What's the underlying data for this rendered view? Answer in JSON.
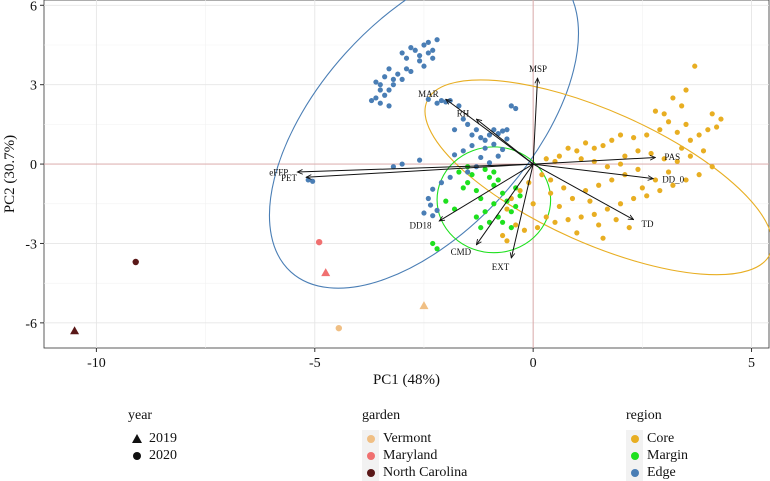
{
  "chart_data": {
    "type": "scatter",
    "xlabel": "PC1 (48%)",
    "ylabel": "PC2 (30.7%)",
    "xlim": [
      -11.2,
      5.4
    ],
    "ylim": [
      -6.95,
      6.2
    ],
    "x_ticks": [
      -10,
      -5,
      0,
      5
    ],
    "y_ticks": [
      -6,
      -3,
      0,
      3,
      6
    ],
    "grid": true,
    "reference_lines": {
      "x": 0,
      "y": 0,
      "color": "#d9a3a3"
    },
    "colors": {
      "Core": "#e8ae22",
      "Margin": "#1ee01e",
      "Edge": "#4a7eb5",
      "Vermont": "#f0bf84",
      "Maryland": "#f07070",
      "North Carolina": "#5a1818"
    },
    "ellipses": [
      {
        "region": "Edge",
        "cx": -2.5,
        "cy": 1.5,
        "rx": 4.55,
        "ry": 4.0,
        "angle_deg": -48
      },
      {
        "region": "Core",
        "cx": 1.5,
        "cy": -0.5,
        "rx": 4.3,
        "ry": 2.5,
        "angle_deg": 24
      },
      {
        "region": "Margin",
        "cx": -0.9,
        "cy": -1.35,
        "rx": 1.3,
        "ry": 2.0,
        "angle_deg": 0
      }
    ],
    "vectors": [
      {
        "label": "MSP",
        "x": 0.1,
        "y": 3.25
      },
      {
        "label": "MAR",
        "x": -2.0,
        "y": 2.45
      },
      {
        "label": "RH",
        "x": -1.3,
        "y": 1.7
      },
      {
        "label": "PAS",
        "x": 2.8,
        "y": 0.25
      },
      {
        "label": "DD_0",
        "x": 2.75,
        "y": -0.55
      },
      {
        "label": "TD",
        "x": 2.3,
        "y": -2.1
      },
      {
        "label": "eFFP",
        "x": -5.4,
        "y": -0.3
      },
      {
        "label": "PET",
        "x": -5.2,
        "y": -0.5
      },
      {
        "label": "DD18",
        "x": -2.15,
        "y": -2.15
      },
      {
        "label": "CMD",
        "x": -1.3,
        "y": -3.05
      },
      {
        "label": "EXT",
        "x": -0.5,
        "y": -3.55
      }
    ],
    "garden_points": [
      {
        "garden": "North Carolina",
        "year": "2019",
        "x": -10.5,
        "y": -6.3
      },
      {
        "garden": "North Carolina",
        "year": "2020",
        "x": -9.1,
        "y": -3.7
      },
      {
        "garden": "Maryland",
        "year": "2020",
        "x": -4.9,
        "y": -2.95
      },
      {
        "garden": "Maryland",
        "year": "2019",
        "x": -4.75,
        "y": -4.1
      },
      {
        "garden": "Vermont",
        "year": "2019",
        "x": -2.5,
        "y": -5.35
      },
      {
        "garden": "Vermont",
        "year": "2020",
        "x": -4.45,
        "y": -6.2
      }
    ],
    "series": [
      {
        "name": "Edge",
        "points": [
          [
            -3.0,
            4.2
          ],
          [
            -2.9,
            4.0
          ],
          [
            -2.8,
            4.4
          ],
          [
            -2.7,
            4.3
          ],
          [
            -2.6,
            4.1
          ],
          [
            -2.5,
            4.5
          ],
          [
            -2.4,
            4.2
          ],
          [
            -2.3,
            4.0
          ],
          [
            -2.6,
            3.9
          ],
          [
            -2.9,
            3.6
          ],
          [
            -3.1,
            3.4
          ],
          [
            -3.0,
            3.2
          ],
          [
            -2.8,
            3.5
          ],
          [
            -2.5,
            3.7
          ],
          [
            -2.3,
            4.3
          ],
          [
            -2.2,
            4.7
          ],
          [
            -2.4,
            4.6
          ],
          [
            -3.2,
            3.0
          ],
          [
            -3.3,
            2.8
          ],
          [
            -3.4,
            2.6
          ],
          [
            -3.5,
            2.8
          ],
          [
            -3.6,
            2.5
          ],
          [
            -3.7,
            2.4
          ],
          [
            -3.5,
            2.3
          ],
          [
            -3.3,
            2.2
          ],
          [
            -3.6,
            3.1
          ],
          [
            -3.4,
            3.3
          ],
          [
            -3.3,
            3.6
          ],
          [
            -3.2,
            3.2
          ],
          [
            -3.5,
            3.0
          ],
          [
            -2.2,
            2.3
          ],
          [
            -2.1,
            2.4
          ],
          [
            -2.0,
            2.35
          ],
          [
            -1.9,
            2.4
          ],
          [
            -2.4,
            2.45
          ],
          [
            -1.7,
            2.2
          ],
          [
            -1.6,
            1.7
          ],
          [
            -1.5,
            1.5
          ],
          [
            -1.3,
            1.3
          ],
          [
            -1.2,
            1.0
          ],
          [
            -1.1,
            0.9
          ],
          [
            -1.0,
            1.1
          ],
          [
            -0.9,
            1.3
          ],
          [
            -0.8,
            1.15
          ],
          [
            -0.7,
            1.25
          ],
          [
            -0.6,
            0.95
          ],
          [
            -1.4,
            0.7
          ],
          [
            -1.6,
            0.5
          ],
          [
            -1.2,
            0.25
          ],
          [
            -1.0,
            0.05
          ],
          [
            -0.5,
            2.2
          ],
          [
            -0.4,
            2.1
          ],
          [
            -1.3,
            -0.1
          ],
          [
            -1.5,
            -0.3
          ],
          [
            -1.9,
            -0.5
          ],
          [
            -2.1,
            -0.7
          ],
          [
            -2.3,
            -0.95
          ],
          [
            -2.4,
            -1.3
          ],
          [
            -2.35,
            -1.55
          ],
          [
            -2.2,
            -1.75
          ],
          [
            -2.5,
            -1.85
          ],
          [
            -2.3,
            -1.95
          ],
          [
            -3.2,
            -0.1
          ],
          [
            -3.0,
            0.0
          ],
          [
            -2.6,
            0.15
          ],
          [
            -1.8,
            0.35
          ],
          [
            -0.8,
            0.3
          ],
          [
            -0.7,
            0.55
          ],
          [
            -5.15,
            -0.6
          ],
          [
            -5.05,
            -0.65
          ],
          [
            -0.9,
            0.75
          ],
          [
            -1.1,
            0.6
          ],
          [
            -1.4,
            1.1
          ],
          [
            -1.8,
            1.3
          ],
          [
            -0.6,
            1.3
          ]
        ]
      },
      {
        "name": "Core",
        "points": [
          [
            3.7,
            3.7
          ],
          [
            3.5,
            2.8
          ],
          [
            3.2,
            2.5
          ],
          [
            3.4,
            2.2
          ],
          [
            3.0,
            1.9
          ],
          [
            2.8,
            2.0
          ],
          [
            3.1,
            1.6
          ],
          [
            3.5,
            1.5
          ],
          [
            4.1,
            1.9
          ],
          [
            4.3,
            1.7
          ],
          [
            4.2,
            1.4
          ],
          [
            4.0,
            1.3
          ],
          [
            3.8,
            1.1
          ],
          [
            3.6,
            0.9
          ],
          [
            3.3,
            1.2
          ],
          [
            2.9,
            1.3
          ],
          [
            2.6,
            1.1
          ],
          [
            2.3,
            1.0
          ],
          [
            2.0,
            1.1
          ],
          [
            1.8,
            0.9
          ],
          [
            1.6,
            0.7
          ],
          [
            1.4,
            0.6
          ],
          [
            1.2,
            0.8
          ],
          [
            1.0,
            0.5
          ],
          [
            0.8,
            0.6
          ],
          [
            0.6,
            0.3
          ],
          [
            0.5,
            0.1
          ],
          [
            0.3,
            0.2
          ],
          [
            2.1,
            0.3
          ],
          [
            2.4,
            0.5
          ],
          [
            2.7,
            0.4
          ],
          [
            3.0,
            0.2
          ],
          [
            3.3,
            0.1
          ],
          [
            3.6,
            0.3
          ],
          [
            3.9,
            0.5
          ],
          [
            4.1,
            -0.1
          ],
          [
            3.8,
            -0.4
          ],
          [
            3.5,
            -0.6
          ],
          [
            3.2,
            -0.8
          ],
          [
            2.9,
            -1.0
          ],
          [
            2.6,
            -1.2
          ],
          [
            2.3,
            -1.3
          ],
          [
            2.0,
            -1.5
          ],
          [
            1.7,
            -1.7
          ],
          [
            1.4,
            -1.9
          ],
          [
            1.1,
            -2.0
          ],
          [
            0.8,
            -2.1
          ],
          [
            0.5,
            -2.2
          ],
          [
            0.3,
            -2.0
          ],
          [
            0.6,
            -1.6
          ],
          [
            0.9,
            -1.3
          ],
          [
            1.2,
            -1.0
          ],
          [
            1.5,
            -0.8
          ],
          [
            1.8,
            -0.6
          ],
          [
            2.1,
            -0.4
          ],
          [
            2.4,
            -0.2
          ],
          [
            0.4,
            -0.6
          ],
          [
            0.2,
            -0.4
          ],
          [
            -0.1,
            -0.7
          ],
          [
            -0.3,
            -1.0
          ],
          [
            -0.5,
            -1.3
          ],
          [
            -0.6,
            -1.7
          ],
          [
            -0.4,
            -2.3
          ],
          [
            -0.2,
            -2.5
          ],
          [
            0.1,
            -2.4
          ],
          [
            1.6,
            -2.8
          ],
          [
            1.5,
            -2.3
          ],
          [
            1.0,
            -2.6
          ],
          [
            -0.7,
            -2.7
          ],
          [
            -0.6,
            -2.9
          ],
          [
            2.2,
            -2.4
          ],
          [
            1.9,
            -2.1
          ],
          [
            1.3,
            -1.4
          ],
          [
            0.7,
            -0.9
          ],
          [
            0.0,
            -1.5
          ],
          [
            2.5,
            -0.9
          ],
          [
            2.8,
            -0.6
          ],
          [
            3.1,
            -0.3
          ],
          [
            1.1,
            0.2
          ],
          [
            1.4,
            0.1
          ],
          [
            1.7,
            -0.1
          ],
          [
            2.0,
            0.0
          ],
          [
            3.4,
            0.6
          ],
          [
            0.4,
            -1.1
          ]
        ]
      },
      {
        "name": "Margin",
        "points": [
          [
            -1.1,
            -0.2
          ],
          [
            -1.0,
            -0.5
          ],
          [
            -0.9,
            -0.3
          ],
          [
            -0.8,
            -0.6
          ],
          [
            -1.4,
            -0.4
          ],
          [
            -1.5,
            -0.7
          ],
          [
            -1.6,
            -0.9
          ],
          [
            -1.3,
            -1.0
          ],
          [
            -1.2,
            -1.3
          ],
          [
            -0.9,
            -1.5
          ],
          [
            -0.7,
            -1.1
          ],
          [
            -0.6,
            -1.4
          ],
          [
            -0.5,
            -1.8
          ],
          [
            -0.4,
            -1.6
          ],
          [
            -0.8,
            -2.0
          ],
          [
            -1.0,
            -2.2
          ],
          [
            -1.2,
            -2.4
          ],
          [
            -0.7,
            -2.2
          ],
          [
            -2.0,
            -1.4
          ],
          [
            -1.8,
            -1.7
          ],
          [
            -2.3,
            -3.0
          ],
          [
            -2.2,
            -3.2
          ],
          [
            -0.9,
            -0.8
          ],
          [
            -1.1,
            -1.8
          ],
          [
            -0.5,
            -2.4
          ],
          [
            -1.5,
            -0.1
          ],
          [
            -0.4,
            -0.9
          ],
          [
            -0.3,
            -1.2
          ],
          [
            -1.7,
            -0.3
          ],
          [
            -1.3,
            -2.0
          ]
        ]
      }
    ]
  },
  "legend": {
    "year": {
      "title": "year",
      "items": [
        {
          "label": "2019",
          "shape": "triangle"
        },
        {
          "label": "2020",
          "shape": "circle"
        }
      ]
    },
    "garden": {
      "title": "garden",
      "items": [
        {
          "label": "Vermont",
          "color": "#f0bf84"
        },
        {
          "label": "Maryland",
          "color": "#f07070"
        },
        {
          "label": "North Carolina",
          "color": "#5a1818"
        }
      ]
    },
    "region": {
      "title": "region",
      "items": [
        {
          "label": "Core",
          "color": "#e8ae22"
        },
        {
          "label": "Margin",
          "color": "#1ee01e"
        },
        {
          "label": "Edge",
          "color": "#4a7eb5"
        }
      ]
    }
  }
}
